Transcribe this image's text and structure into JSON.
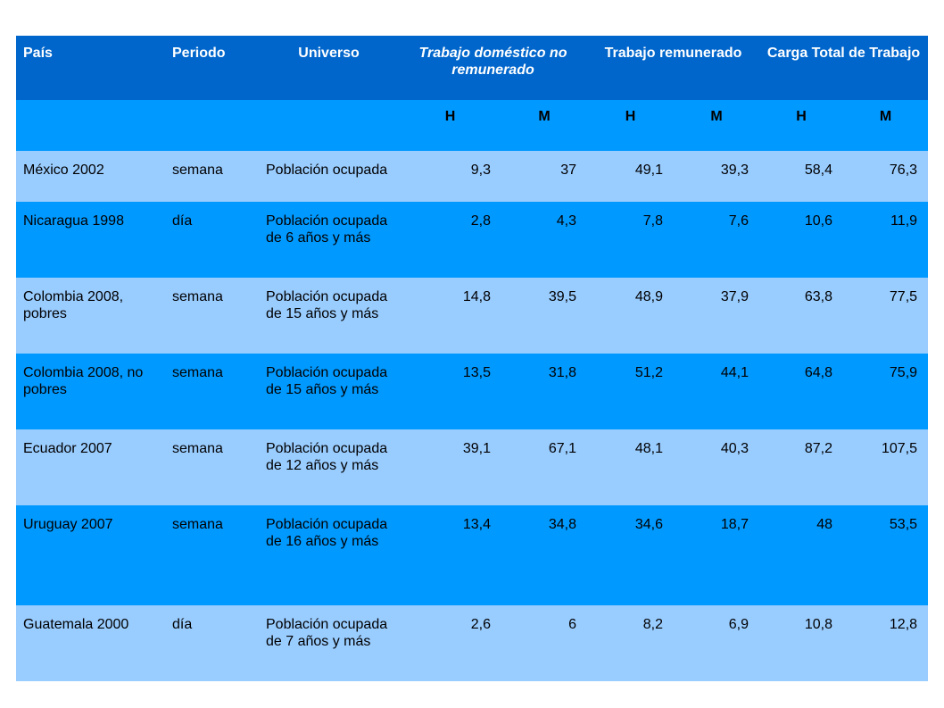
{
  "table": {
    "headers": {
      "pais": "País",
      "periodo": "Periodo",
      "universo": "Universo",
      "trabajo_domestico": "Trabajo doméstico no remunerado",
      "trabajo_remunerado": "Trabajo remunerado",
      "carga_total": "Carga Total de Trabajo"
    },
    "subheaders": [
      "H",
      "M",
      "H",
      "M",
      "H",
      "M"
    ],
    "rows": [
      {
        "pais": "México 2002",
        "periodo": "semana",
        "universo": "Población ocupada",
        "values": [
          "9,3",
          "37",
          "49,1",
          "39,3",
          "58,4",
          "76,3"
        ]
      },
      {
        "pais": "Nicaragua 1998",
        "periodo": "día",
        "universo": "Población ocupada de 6 años y más",
        "values": [
          "2,8",
          "4,3",
          "7,8",
          "7,6",
          "10,6",
          "11,9"
        ]
      },
      {
        "pais": "Colombia 2008, pobres",
        "periodo": "semana",
        "universo": "Población ocupada de 15 años y más",
        "values": [
          "14,8",
          "39,5",
          "48,9",
          "37,9",
          "63,8",
          "77,5"
        ]
      },
      {
        "pais": "Colombia 2008, no pobres",
        "periodo": "semana",
        "universo": "Población ocupada de 15 años y más",
        "values": [
          "13,5",
          "31,8",
          "51,2",
          "44,1",
          "64,8",
          "75,9"
        ]
      },
      {
        "pais": "Ecuador 2007",
        "periodo": "semana",
        "universo": "Población ocupada de 12 años y más",
        "values": [
          "39,1",
          "67,1",
          "48,1",
          "40,3",
          "87,2",
          "107,5"
        ]
      },
      {
        "pais": "Uruguay 2007",
        "periodo": "semana",
        "universo": "Población ocupada de 16 años y más",
        "values": [
          "13,4",
          "34,8",
          "34,6",
          "18,7",
          "48",
          "53,5"
        ]
      },
      {
        "pais": "Guatemala 2000",
        "periodo": "día",
        "universo": "Población ocupada de 7 años y más",
        "values": [
          "2,6",
          "6",
          "8,2",
          "6,9",
          "10,8",
          "12,8"
        ]
      }
    ]
  },
  "colors": {
    "header_dark": "#0066cc",
    "header_light": "#0099ff",
    "row_light": "#99ccff",
    "row_dark": "#0099ff"
  }
}
